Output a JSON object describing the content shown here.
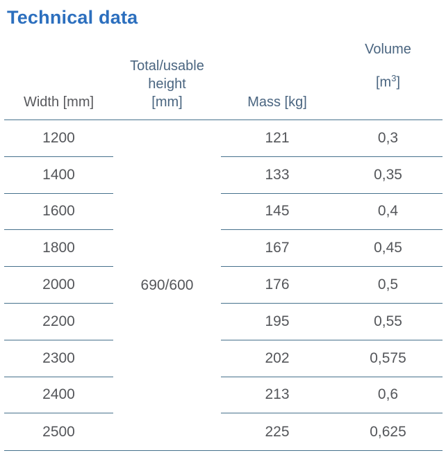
{
  "title": "Technical data",
  "colors": {
    "title_blue": "#2c6fbe",
    "header_blue_gray": "#4a6580",
    "text_gray": "#54565a",
    "line_steel_blue": "#46718c",
    "background": "#ffffff"
  },
  "table": {
    "headers": {
      "width": "Width [mm]",
      "height_line1": "Total/usable",
      "height_line2": "height",
      "height_line3": "[mm]",
      "mass": "Mass [kg]",
      "volume": "Volume",
      "volume_unit_pre": "[m",
      "volume_unit_sup": "3",
      "volume_unit_post": "]"
    },
    "span_value": "690/600",
    "rows": [
      {
        "width": "1200",
        "mass": "121",
        "volume": "0,3"
      },
      {
        "width": "1400",
        "mass": "133",
        "volume": "0,35"
      },
      {
        "width": "1600",
        "mass": "145",
        "volume": "0,4"
      },
      {
        "width": "1800",
        "mass": "167",
        "volume": "0,45"
      },
      {
        "width": "2000",
        "mass": "176",
        "volume": "0,5"
      },
      {
        "width": "2200",
        "mass": "195",
        "volume": "0,55"
      },
      {
        "width": "2300",
        "mass": "202",
        "volume": "0,575"
      },
      {
        "width": "2400",
        "mass": "213",
        "volume": "0,6"
      },
      {
        "width": "2500",
        "mass": "225",
        "volume": "0,625"
      }
    ]
  }
}
